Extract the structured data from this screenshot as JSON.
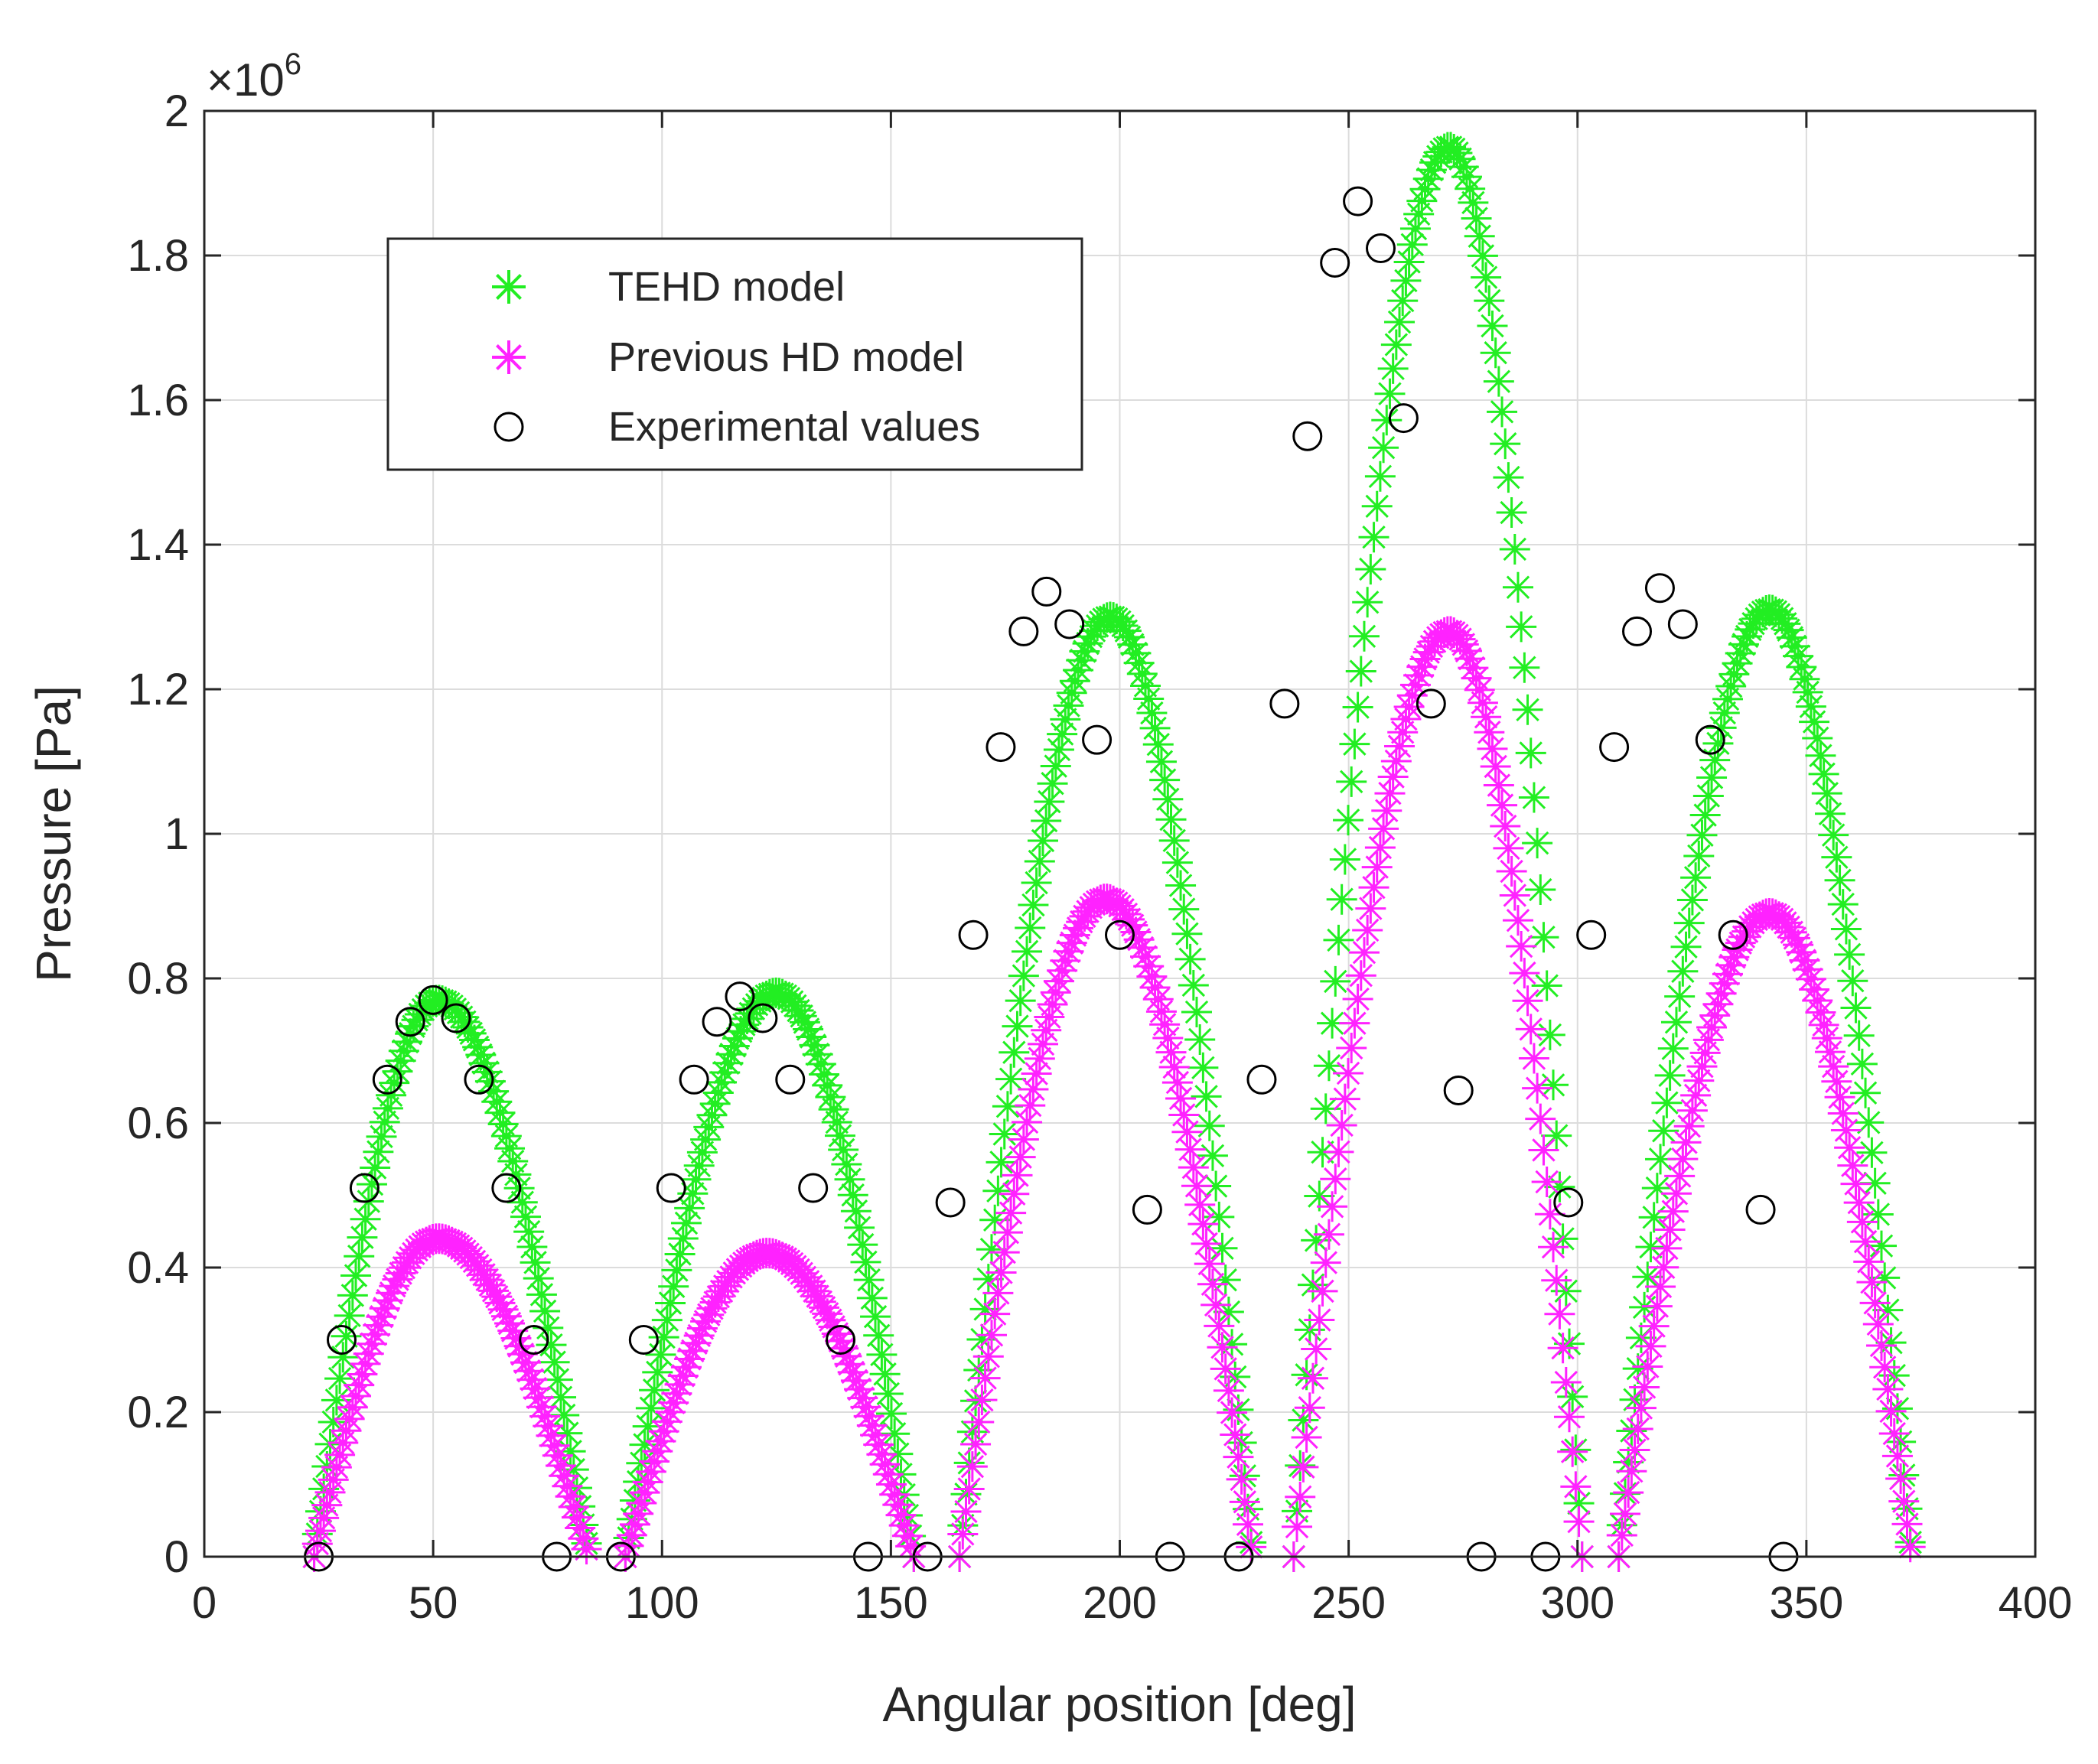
{
  "chart_data": {
    "type": "scatter",
    "title": "",
    "xlabel": "Angular position [deg]",
    "ylabel": "Pressure [Pa]",
    "xlim": [
      0,
      400
    ],
    "ylim": [
      0,
      2000000
    ],
    "xticks": [
      0,
      50,
      100,
      150,
      200,
      250,
      300,
      350,
      400
    ],
    "yticks": [
      0,
      200000,
      400000,
      600000,
      800000,
      1000000,
      1200000,
      1400000,
      1600000,
      1800000,
      2000000
    ],
    "xtick_labels": [
      "0",
      "50",
      "100",
      "150",
      "200",
      "250",
      "300",
      "350",
      "400"
    ],
    "ytick_labels": [
      "0",
      "0.2",
      "0.4",
      "0.6",
      "0.8",
      "1",
      "1.2",
      "1.4",
      "1.6",
      "1.8",
      "2"
    ],
    "y_exponent_base": "×10",
    "y_exponent_power": "6",
    "grid": true,
    "legend_position": "top-left",
    "series": [
      {
        "name": "TEHD model",
        "marker": "asterisk",
        "color": "#22ee22",
        "lobes": [
          {
            "start": 24,
            "end": 84,
            "peak_x": 51,
            "peak_y": 770000
          },
          {
            "start": 92,
            "end": 155,
            "peak_x": 125,
            "peak_y": 780000
          },
          {
            "start": 165,
            "end": 229,
            "peak_x": 198,
            "peak_y": 1300000
          },
          {
            "start": 238,
            "end": 301,
            "peak_x": 272,
            "peak_y": 1950000
          },
          {
            "start": 309,
            "end": 373,
            "peak_x": 342,
            "peak_y": 1310000
          }
        ]
      },
      {
        "name": "Previous HD model",
        "marker": "asterisk",
        "color": "#ff22ff",
        "lobes": [
          {
            "start": 24,
            "end": 84,
            "peak_x": 51,
            "peak_y": 440000
          },
          {
            "start": 92,
            "end": 155,
            "peak_x": 123,
            "peak_y": 420000
          },
          {
            "start": 165,
            "end": 229,
            "peak_x": 197,
            "peak_y": 910000
          },
          {
            "start": 238,
            "end": 301,
            "peak_x": 272,
            "peak_y": 1280000
          },
          {
            "start": 309,
            "end": 373,
            "peak_x": 342,
            "peak_y": 890000
          }
        ]
      },
      {
        "name": "Experimental values",
        "marker": "circle",
        "color": "#000000",
        "points": [
          [
            25,
            0
          ],
          [
            30,
            300000
          ],
          [
            35,
            510000
          ],
          [
            40,
            660000
          ],
          [
            45,
            740000
          ],
          [
            50,
            770000
          ],
          [
            55,
            745000
          ],
          [
            60,
            660000
          ],
          [
            66,
            510000
          ],
          [
            72,
            300000
          ],
          [
            77,
            0
          ],
          [
            91,
            0
          ],
          [
            96,
            300000
          ],
          [
            102,
            510000
          ],
          [
            107,
            660000
          ],
          [
            112,
            740000
          ],
          [
            117,
            775000
          ],
          [
            122,
            745000
          ],
          [
            128,
            660000
          ],
          [
            133,
            510000
          ],
          [
            139,
            300000
          ],
          [
            145,
            0
          ],
          [
            158,
            0
          ],
          [
            163,
            490000
          ],
          [
            168,
            860000
          ],
          [
            174,
            1120000
          ],
          [
            179,
            1280000
          ],
          [
            184,
            1335000
          ],
          [
            189,
            1290000
          ],
          [
            195,
            1130000
          ],
          [
            200,
            860000
          ],
          [
            206,
            480000
          ],
          [
            211,
            0
          ],
          [
            226,
            0
          ],
          [
            231,
            660000
          ],
          [
            236,
            1180000
          ],
          [
            241,
            1550000
          ],
          [
            247,
            1790000
          ],
          [
            252,
            1875000
          ],
          [
            257,
            1810000
          ],
          [
            262,
            1575000
          ],
          [
            268,
            1180000
          ],
          [
            274,
            645000
          ],
          [
            279,
            0
          ],
          [
            293,
            0
          ],
          [
            298,
            490000
          ],
          [
            303,
            860000
          ],
          [
            308,
            1120000
          ],
          [
            313,
            1280000
          ],
          [
            318,
            1340000
          ],
          [
            323,
            1290000
          ],
          [
            329,
            1130000
          ],
          [
            334,
            860000
          ],
          [
            340,
            480000
          ],
          [
            345,
            0
          ]
        ]
      }
    ]
  }
}
